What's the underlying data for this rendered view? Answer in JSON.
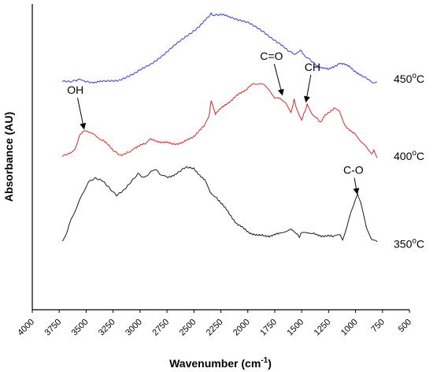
{
  "chart_data": {
    "type": "line",
    "xlabel": "Wavenumber (cm",
    "xlabel_sup": "-1",
    "xlabel_tail": ")",
    "ylabel": "Absorbance (AU)",
    "xlim": [
      4000,
      500
    ],
    "x_reversed": true,
    "y_ticks": false,
    "grid": false,
    "x_ticks": [
      4000,
      3750,
      3500,
      3250,
      3000,
      2750,
      2500,
      2250,
      2000,
      1750,
      1500,
      1250,
      1000,
      750,
      500
    ],
    "series": [
      {
        "label_base": "450",
        "label_sup": "o",
        "label_unit": "C",
        "color": "#3a3ad6",
        "points": [
          [
            3720,
            9.1
          ],
          [
            3650,
            9.1
          ],
          [
            3590,
            9.15
          ],
          [
            3560,
            9.3
          ],
          [
            3520,
            9.15
          ],
          [
            3450,
            9.1
          ],
          [
            3350,
            9.1
          ],
          [
            3200,
            9.2
          ],
          [
            3050,
            9.5
          ],
          [
            2900,
            10.0
          ],
          [
            2750,
            10.6
          ],
          [
            2600,
            11.25
          ],
          [
            2450,
            11.9
          ],
          [
            2360,
            12.35
          ],
          [
            2340,
            12.55
          ],
          [
            2320,
            12.45
          ],
          [
            2250,
            12.45
          ],
          [
            2150,
            12.35
          ],
          [
            2000,
            12.05
          ],
          [
            1850,
            11.6
          ],
          [
            1700,
            11.0
          ],
          [
            1620,
            10.6
          ],
          [
            1560,
            10.45
          ],
          [
            1520,
            10.7
          ],
          [
            1500,
            10.6
          ],
          [
            1480,
            10.45
          ],
          [
            1420,
            10.2
          ],
          [
            1350,
            9.9
          ],
          [
            1250,
            9.7
          ],
          [
            1150,
            10.05
          ],
          [
            1050,
            9.85
          ],
          [
            950,
            9.4
          ],
          [
            880,
            9.2
          ],
          [
            840,
            9.1
          ],
          [
            800,
            9.1
          ]
        ],
        "label_y": 9.05
      },
      {
        "label_base": "400",
        "label_sup": "o",
        "label_unit": "C",
        "color": "#d42a2a",
        "points": [
          [
            3720,
            5.4
          ],
          [
            3650,
            5.5
          ],
          [
            3600,
            5.8
          ],
          [
            3560,
            6.5
          ],
          [
            3500,
            6.7
          ],
          [
            3450,
            6.5
          ],
          [
            3400,
            6.3
          ],
          [
            3350,
            6.2
          ],
          [
            3250,
            5.7
          ],
          [
            3180,
            5.45
          ],
          [
            3100,
            5.6
          ],
          [
            3050,
            5.8
          ],
          [
            2950,
            6.0
          ],
          [
            2900,
            6.2
          ],
          [
            2800,
            6.1
          ],
          [
            2700,
            6.0
          ],
          [
            2600,
            6.05
          ],
          [
            2500,
            6.4
          ],
          [
            2400,
            6.9
          ],
          [
            2360,
            7.4
          ],
          [
            2340,
            8.1
          ],
          [
            2300,
            7.5
          ],
          [
            2200,
            8.0
          ],
          [
            2100,
            8.4
          ],
          [
            2000,
            8.8
          ],
          [
            1950,
            9.05
          ],
          [
            1900,
            9.0
          ],
          [
            1850,
            8.9
          ],
          [
            1800,
            8.7
          ],
          [
            1750,
            8.3
          ],
          [
            1700,
            8.3
          ],
          [
            1650,
            8.1
          ],
          [
            1600,
            7.5
          ],
          [
            1570,
            8.25
          ],
          [
            1550,
            7.8
          ],
          [
            1500,
            7.2
          ],
          [
            1470,
            7.6
          ],
          [
            1450,
            8.0
          ],
          [
            1400,
            7.5
          ],
          [
            1350,
            7.2
          ],
          [
            1320,
            7.1
          ],
          [
            1300,
            7.3
          ],
          [
            1200,
            7.8
          ],
          [
            1150,
            7.7
          ],
          [
            1100,
            6.9
          ],
          [
            1000,
            6.5
          ],
          [
            950,
            6.1
          ],
          [
            900,
            5.9
          ],
          [
            850,
            5.5
          ],
          [
            830,
            5.7
          ],
          [
            800,
            5.3
          ]
        ],
        "label_y": 5.2
      },
      {
        "label_base": "350",
        "label_sup": "o",
        "label_unit": "C",
        "color": "#1a1a1a",
        "points": [
          [
            3720,
            1.2
          ],
          [
            3680,
            1.5
          ],
          [
            3640,
            2.2
          ],
          [
            3600,
            2.7
          ],
          [
            3560,
            3.2
          ],
          [
            3520,
            3.6
          ],
          [
            3480,
            4.1
          ],
          [
            3420,
            4.3
          ],
          [
            3350,
            4.2
          ],
          [
            3280,
            3.8
          ],
          [
            3220,
            3.45
          ],
          [
            3150,
            3.7
          ],
          [
            3080,
            4.1
          ],
          [
            3020,
            4.5
          ],
          [
            2960,
            4.3
          ],
          [
            2900,
            4.6
          ],
          [
            2860,
            4.75
          ],
          [
            2800,
            4.45
          ],
          [
            2750,
            4.3
          ],
          [
            2650,
            4.55
          ],
          [
            2580,
            4.8
          ],
          [
            2500,
            4.75
          ],
          [
            2400,
            4.2
          ],
          [
            2350,
            3.6
          ],
          [
            2300,
            3.4
          ],
          [
            2200,
            2.7
          ],
          [
            2100,
            2.0
          ],
          [
            2000,
            1.6
          ],
          [
            1900,
            1.4
          ],
          [
            1800,
            1.4
          ],
          [
            1700,
            1.5
          ],
          [
            1650,
            1.6
          ],
          [
            1600,
            1.7
          ],
          [
            1550,
            1.55
          ],
          [
            1520,
            1.3
          ],
          [
            1500,
            1.6
          ],
          [
            1450,
            1.5
          ],
          [
            1400,
            1.5
          ],
          [
            1300,
            1.4
          ],
          [
            1200,
            1.35
          ],
          [
            1150,
            1.45
          ],
          [
            1120,
            1.25
          ],
          [
            1080,
            1.8
          ],
          [
            1040,
            2.6
          ],
          [
            1000,
            3.3
          ],
          [
            980,
            3.45
          ],
          [
            950,
            3.0
          ],
          [
            900,
            1.8
          ],
          [
            850,
            1.2
          ],
          [
            800,
            1.1
          ]
        ],
        "label_y": 0.8
      }
    ],
    "annotations": [
      {
        "text": "OH",
        "tip": [
          3520,
          6.75
        ],
        "label_at": [
          3600,
          8.5
        ]
      },
      {
        "text": "C=O",
        "tip": [
          1680,
          8.45
        ],
        "label_at": [
          1780,
          10.2
        ]
      },
      {
        "text": "CH",
        "tip": [
          1460,
          8.1
        ],
        "label_at": [
          1400,
          9.65
        ]
      },
      {
        "text": "C-O",
        "tip": [
          985,
          3.5
        ],
        "label_at": [
          1020,
          4.5
        ]
      }
    ]
  }
}
